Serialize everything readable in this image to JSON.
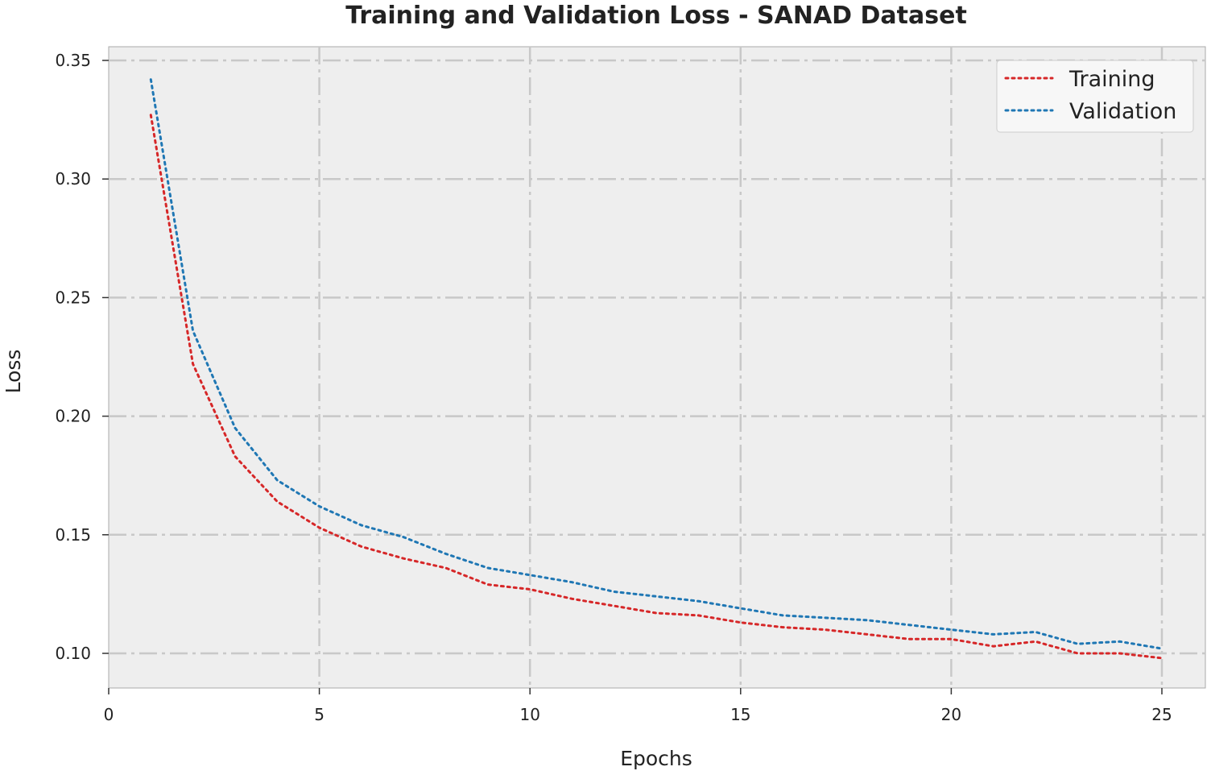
{
  "chart_data": {
    "type": "line",
    "title": "Training and Validation Loss - SANAD Dataset",
    "xlabel": "Epochs",
    "ylabel": "Loss",
    "xlim": [
      0,
      26
    ],
    "ylim": [
      0.085,
      0.35
    ],
    "x_ticks": [
      "0",
      "5",
      "10",
      "15",
      "20",
      "25"
    ],
    "y_ticks": [
      "0.10",
      "0.15",
      "0.20",
      "0.25",
      "0.30",
      "0.35"
    ],
    "grid": true,
    "legend_position": "top-right",
    "x": [
      1,
      2,
      3,
      4,
      5,
      6,
      7,
      8,
      9,
      10,
      11,
      12,
      13,
      14,
      15,
      16,
      17,
      18,
      19,
      20,
      21,
      22,
      23,
      24,
      25
    ],
    "series": [
      {
        "name": "Training",
        "color": "#d62728",
        "values": [
          0.327,
          0.222,
          0.183,
          0.164,
          0.153,
          0.145,
          0.14,
          0.136,
          0.129,
          0.127,
          0.123,
          0.12,
          0.117,
          0.116,
          0.113,
          0.111,
          0.11,
          0.108,
          0.106,
          0.106,
          0.103,
          0.105,
          0.1,
          0.1,
          0.098
        ]
      },
      {
        "name": "Validation",
        "color": "#1f77b4",
        "values": [
          0.342,
          0.236,
          0.195,
          0.173,
          0.162,
          0.154,
          0.149,
          0.142,
          0.136,
          0.133,
          0.13,
          0.126,
          0.124,
          0.122,
          0.119,
          0.116,
          0.115,
          0.114,
          0.112,
          0.11,
          0.108,
          0.109,
          0.104,
          0.105,
          0.102
        ]
      }
    ]
  },
  "colors": {
    "plot_background": "#eeeeee",
    "grid": "#c8c8c8"
  }
}
